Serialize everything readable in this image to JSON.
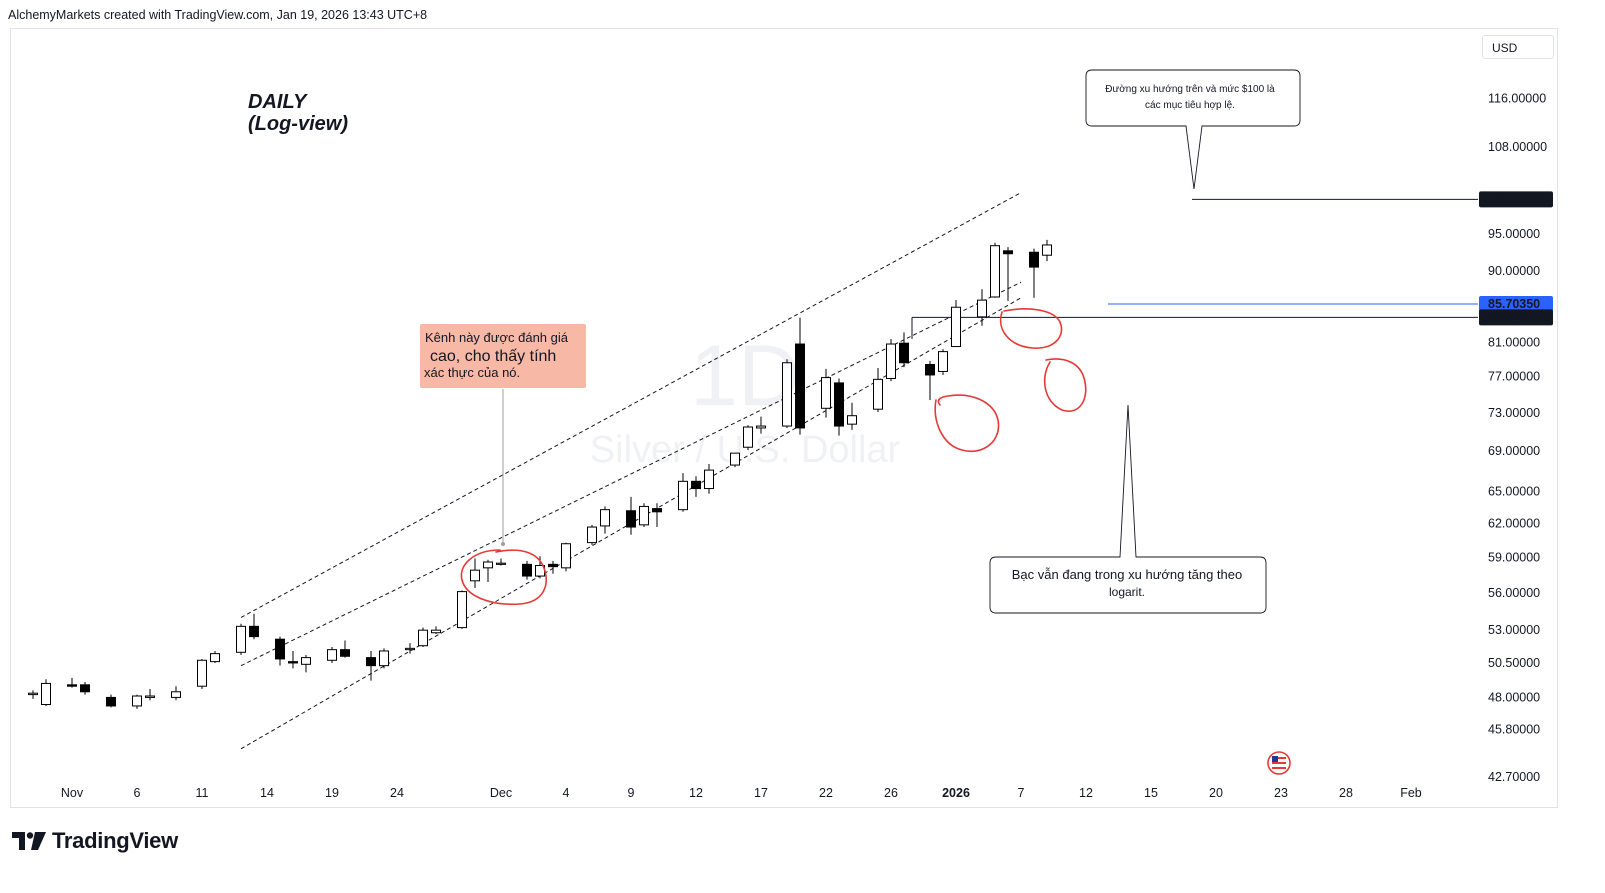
{
  "header": {
    "attribution": "AlchemyMarkets created with TradingView.com, Jan 19, 2026 13:43 UTC+8"
  },
  "toolbar": {
    "currency": "USD"
  },
  "footer": {
    "brand": "TradingView"
  },
  "colors": {
    "bull_fill": "#ffffff",
    "bear_fill": "#000000",
    "candle_stroke": "#000000",
    "circle_red": "#e53935",
    "blue_level": "#2962ff",
    "callout_fill": "#f7b9a6",
    "badge_dark": "#131722"
  },
  "chart_data": {
    "type": "candlestick",
    "title": "DAILY",
    "subtitle": "(Log-view)",
    "scale": "log",
    "watermark_interval": "1D",
    "watermark_symbol": "Silver / U.S. Dollar",
    "y_axis": {
      "range": [
        42.5,
        121.0
      ],
      "ticks": [
        "116.00000",
        "108.00000",
        "95.00000",
        "90.00000",
        "81.00000",
        "77.00000",
        "73.00000",
        "69.00000",
        "65.00000",
        "62.00000",
        "59.00000",
        "56.00000",
        "53.00000",
        "50.50000",
        "48.00000",
        "45.80000",
        "42.70000"
      ],
      "tick_values": [
        116,
        108,
        95,
        90,
        81,
        77,
        73,
        69,
        65,
        62,
        59,
        56,
        53,
        50.5,
        48,
        45.8,
        42.7
      ],
      "badges": [
        {
          "label": "100.00000",
          "value": 100.0,
          "style": "dark"
        },
        {
          "label": "85.70350",
          "value": 85.7035,
          "style": "blue"
        },
        {
          "label": "84.03015",
          "value": 84.03015,
          "style": "dark"
        }
      ]
    },
    "x_axis": {
      "ticks": [
        {
          "label": "Nov",
          "day": 0,
          "bold": false
        },
        {
          "label": "6",
          "day": 5,
          "bold": false
        },
        {
          "label": "11",
          "day": 10,
          "bold": false
        },
        {
          "label": "14",
          "day": 15,
          "bold": false
        },
        {
          "label": "19",
          "day": 20,
          "bold": false
        },
        {
          "label": "24",
          "day": 25,
          "bold": false
        },
        {
          "label": "Dec",
          "day": 33,
          "bold": false
        },
        {
          "label": "4",
          "day": 38,
          "bold": false
        },
        {
          "label": "9",
          "day": 43,
          "bold": false
        },
        {
          "label": "12",
          "day": 48,
          "bold": false
        },
        {
          "label": "17",
          "day": 53,
          "bold": false
        },
        {
          "label": "22",
          "day": 58,
          "bold": false
        },
        {
          "label": "26",
          "day": 63,
          "bold": false
        },
        {
          "label": "2026",
          "day": 68,
          "bold": true
        },
        {
          "label": "7",
          "day": 73,
          "bold": false
        },
        {
          "label": "12",
          "day": 78,
          "bold": false
        },
        {
          "label": "15",
          "day": 83,
          "bold": false
        },
        {
          "label": "20",
          "day": 88,
          "bold": false
        },
        {
          "label": "23",
          "day": 93,
          "bold": false
        },
        {
          "label": "28",
          "day": 98,
          "bold": false
        },
        {
          "label": "Feb",
          "day": 103,
          "bold": false
        }
      ]
    },
    "candles": [
      {
        "d": -3,
        "o": 48.2,
        "h": 48.5,
        "l": 47.9,
        "c": 48.3
      },
      {
        "d": -2,
        "o": 47.5,
        "h": 49.3,
        "l": 47.4,
        "c": 49.0
      },
      {
        "d": 0,
        "o": 48.9,
        "h": 49.4,
        "l": 48.7,
        "c": 48.8
      },
      {
        "d": 1,
        "o": 48.9,
        "h": 49.1,
        "l": 48.2,
        "c": 48.4
      },
      {
        "d": 3,
        "o": 48.0,
        "h": 48.2,
        "l": 47.3,
        "c": 47.4
      },
      {
        "d": 5,
        "o": 47.4,
        "h": 48.2,
        "l": 47.2,
        "c": 48.1
      },
      {
        "d": 6,
        "o": 48.0,
        "h": 48.6,
        "l": 47.8,
        "c": 48.1
      },
      {
        "d": 8,
        "o": 48.0,
        "h": 48.8,
        "l": 47.8,
        "c": 48.4
      },
      {
        "d": 10,
        "o": 48.8,
        "h": 50.8,
        "l": 48.6,
        "c": 50.7
      },
      {
        "d": 11,
        "o": 50.6,
        "h": 51.4,
        "l": 50.5,
        "c": 51.2
      },
      {
        "d": 13,
        "o": 51.3,
        "h": 53.5,
        "l": 51.1,
        "c": 53.3
      },
      {
        "d": 14,
        "o": 53.3,
        "h": 54.3,
        "l": 52.3,
        "c": 52.5
      },
      {
        "d": 16,
        "o": 52.3,
        "h": 52.5,
        "l": 50.3,
        "c": 50.8
      },
      {
        "d": 17,
        "o": 50.6,
        "h": 51.4,
        "l": 50.1,
        "c": 50.5
      },
      {
        "d": 18,
        "o": 50.4,
        "h": 51.1,
        "l": 49.8,
        "c": 50.9
      },
      {
        "d": 20,
        "o": 50.7,
        "h": 51.7,
        "l": 50.5,
        "c": 51.5
      },
      {
        "d": 21,
        "o": 51.5,
        "h": 52.2,
        "l": 50.9,
        "c": 51.0
      },
      {
        "d": 23,
        "o": 50.9,
        "h": 51.4,
        "l": 49.2,
        "c": 50.3
      },
      {
        "d": 24,
        "o": 50.3,
        "h": 51.6,
        "l": 50.1,
        "c": 51.4
      },
      {
        "d": 26,
        "o": 51.5,
        "h": 52.0,
        "l": 51.2,
        "c": 51.6
      },
      {
        "d": 27,
        "o": 51.8,
        "h": 53.2,
        "l": 51.7,
        "c": 53.0
      },
      {
        "d": 28,
        "o": 52.8,
        "h": 53.3,
        "l": 52.7,
        "c": 53.0
      },
      {
        "d": 30,
        "o": 53.2,
        "h": 56.2,
        "l": 53.1,
        "c": 56.1
      },
      {
        "d": 31,
        "o": 57.0,
        "h": 58.9,
        "l": 56.4,
        "c": 57.9
      },
      {
        "d": 32,
        "o": 58.1,
        "h": 58.8,
        "l": 56.9,
        "c": 58.6
      },
      {
        "d": 33,
        "o": 58.5,
        "h": 58.9,
        "l": 58.3,
        "c": 58.5
      },
      {
        "d": 35,
        "o": 58.4,
        "h": 58.7,
        "l": 57.1,
        "c": 57.4
      },
      {
        "d": 36,
        "o": 57.4,
        "h": 59.1,
        "l": 57.2,
        "c": 58.3
      },
      {
        "d": 37,
        "o": 58.4,
        "h": 58.7,
        "l": 57.6,
        "c": 58.2
      },
      {
        "d": 38,
        "o": 58.1,
        "h": 60.3,
        "l": 57.8,
        "c": 60.2
      },
      {
        "d": 40,
        "o": 60.3,
        "h": 61.9,
        "l": 60.1,
        "c": 61.7
      },
      {
        "d": 41,
        "o": 61.8,
        "h": 63.6,
        "l": 61.1,
        "c": 63.3
      },
      {
        "d": 43,
        "o": 63.2,
        "h": 64.5,
        "l": 61.0,
        "c": 61.7
      },
      {
        "d": 44,
        "o": 61.9,
        "h": 63.9,
        "l": 61.7,
        "c": 63.6
      },
      {
        "d": 45,
        "o": 63.4,
        "h": 63.9,
        "l": 61.7,
        "c": 63.1
      },
      {
        "d": 47,
        "o": 63.3,
        "h": 66.8,
        "l": 63.1,
        "c": 66.0
      },
      {
        "d": 48,
        "o": 66.0,
        "h": 66.5,
        "l": 64.5,
        "c": 65.3
      },
      {
        "d": 49,
        "o": 65.3,
        "h": 67.7,
        "l": 64.8,
        "c": 67.1
      },
      {
        "d": 51,
        "o": 67.6,
        "h": 68.8,
        "l": 67.4,
        "c": 68.8
      },
      {
        "d": 52,
        "o": 69.4,
        "h": 71.7,
        "l": 69.1,
        "c": 71.5
      },
      {
        "d": 53,
        "o": 71.4,
        "h": 72.6,
        "l": 70.8,
        "c": 71.6
      },
      {
        "d": 55,
        "o": 71.6,
        "h": 79.0,
        "l": 71.4,
        "c": 78.6
      },
      {
        "d": 56,
        "o": 80.8,
        "h": 84.0,
        "l": 70.7,
        "c": 71.4
      },
      {
        "d": 58,
        "o": 73.5,
        "h": 77.9,
        "l": 72.5,
        "c": 76.9
      },
      {
        "d": 59,
        "o": 76.3,
        "h": 76.8,
        "l": 70.6,
        "c": 71.6
      },
      {
        "d": 60,
        "o": 71.8,
        "h": 74.1,
        "l": 71.2,
        "c": 72.7
      },
      {
        "d": 62,
        "o": 73.4,
        "h": 78.0,
        "l": 73.1,
        "c": 76.7
      },
      {
        "d": 63,
        "o": 76.8,
        "h": 81.4,
        "l": 76.5,
        "c": 80.8
      },
      {
        "d": 64,
        "o": 80.9,
        "h": 82.2,
        "l": 78.1,
        "c": 78.6
      },
      {
        "d": 66,
        "o": 78.4,
        "h": 78.8,
        "l": 74.4,
        "c": 77.2
      },
      {
        "d": 67,
        "o": 77.6,
        "h": 80.2,
        "l": 77.2,
        "c": 79.9
      },
      {
        "d": 68,
        "o": 80.5,
        "h": 86.2,
        "l": 80.5,
        "c": 85.3
      },
      {
        "d": 70,
        "o": 84.1,
        "h": 87.6,
        "l": 83.0,
        "c": 86.2
      },
      {
        "d": 71,
        "o": 86.6,
        "h": 93.8,
        "l": 86.5,
        "c": 93.4
      },
      {
        "d": 72,
        "o": 92.7,
        "h": 93.2,
        "l": 86.1,
        "c": 92.3
      },
      {
        "d": 74,
        "o": 92.5,
        "h": 93.0,
        "l": 86.5,
        "c": 90.5
      },
      {
        "d": 75,
        "o": 92.1,
        "h": 94.2,
        "l": 91.3,
        "c": 93.5
      }
    ],
    "levels": [
      {
        "value": 100.0,
        "color": "#131722"
      },
      {
        "value": 85.7035,
        "color": "#2962ff"
      },
      {
        "value": 84.03015,
        "color": "#131722"
      }
    ],
    "channel": {
      "style": "dashed",
      "lines": [
        {
          "name": "upper",
          "from": {
            "day": 13,
            "value": 54.0
          },
          "to": {
            "day": 73,
            "value": 101.0
          }
        },
        {
          "name": "middle",
          "from": {
            "day": 13,
            "value": 50.3
          },
          "to": {
            "day": 73,
            "value": 88.5
          }
        },
        {
          "name": "lower",
          "from": {
            "day": 13,
            "value": 44.5
          },
          "to": {
            "day": 73,
            "value": 86.5
          }
        }
      ]
    },
    "annotations": [
      {
        "id": "callout-channel",
        "kind": "callout",
        "lines": [
          "Kênh này được đánh giá",
          "cao, cho thấy tính",
          "xác thực của nó."
        ]
      },
      {
        "id": "note-target",
        "kind": "note",
        "lines": [
          "Đường xu hướng trên và mức $100 là",
          "các mục tiêu hợp lệ."
        ]
      },
      {
        "id": "note-trend",
        "kind": "note",
        "lines": [
          "Bạc vẫn đang trong xu hướng tăng theo",
          "logarit."
        ]
      }
    ]
  }
}
